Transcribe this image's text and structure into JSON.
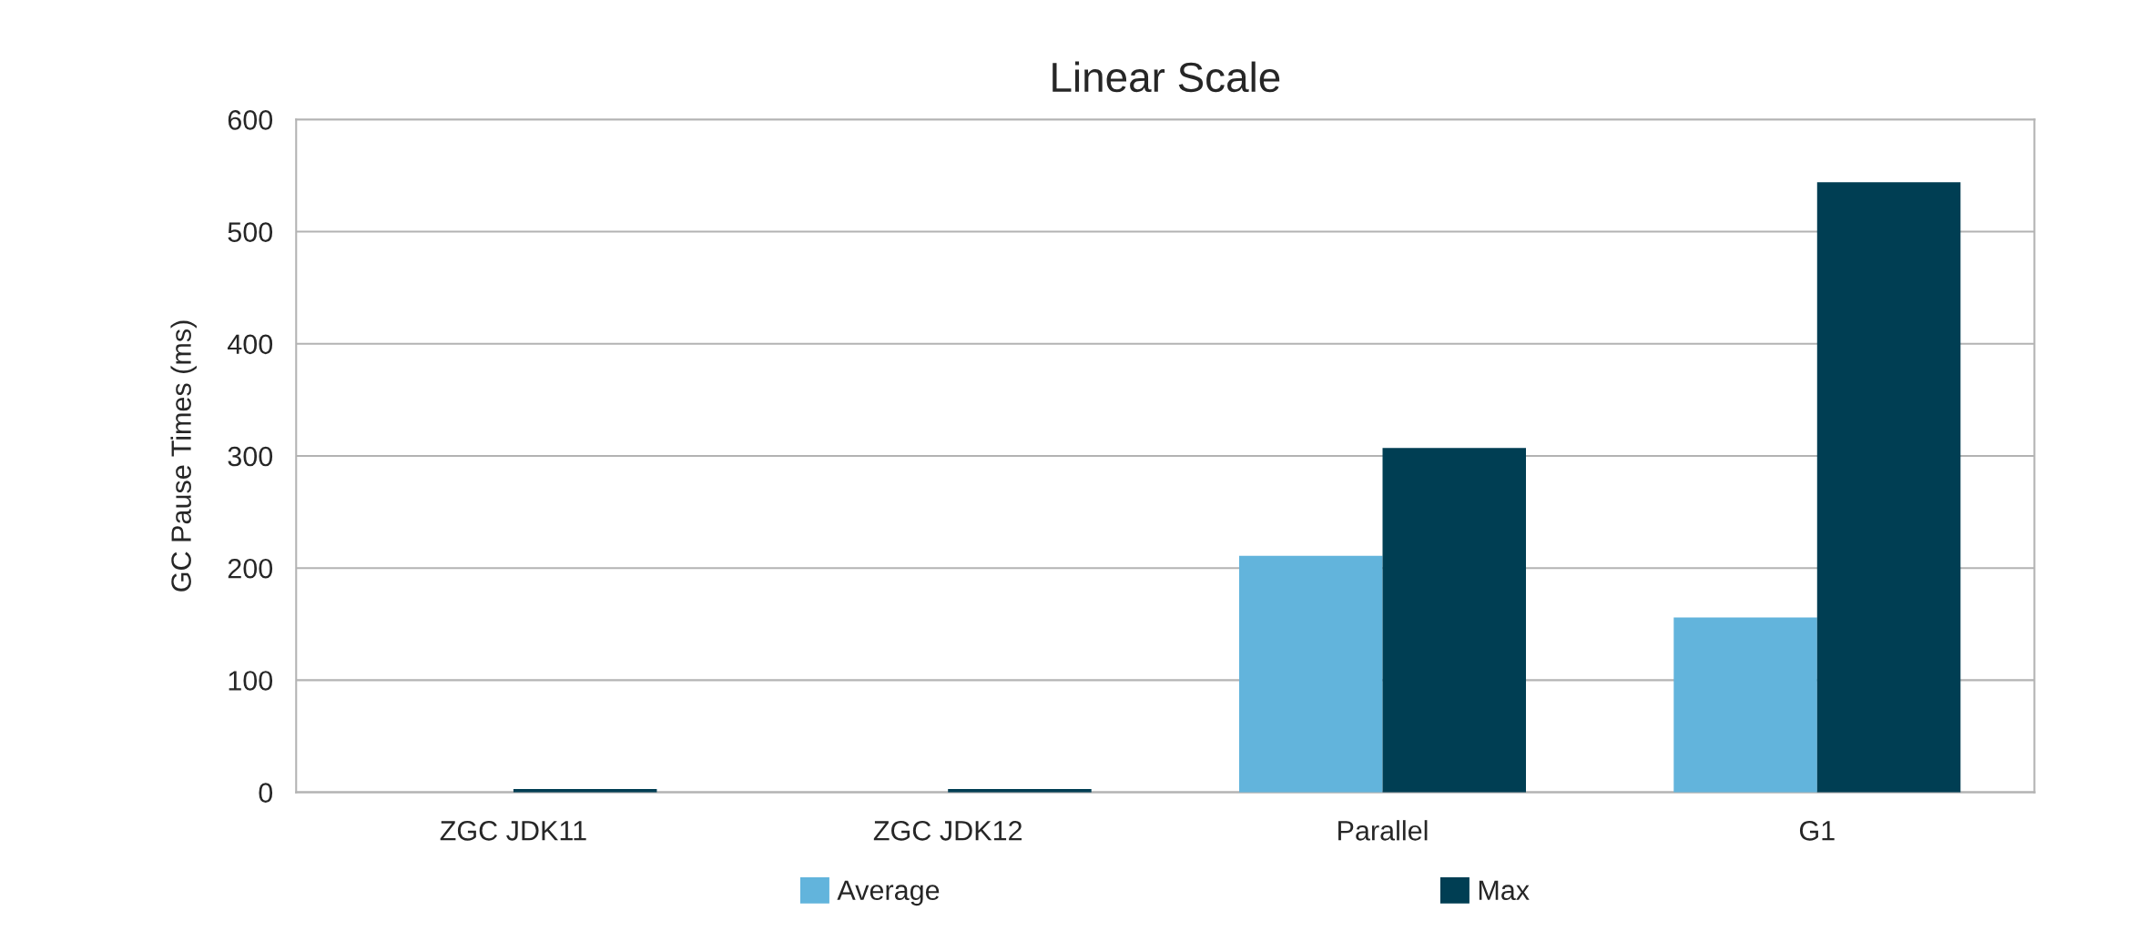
{
  "chart_data": {
    "type": "bar",
    "title": "Linear Scale",
    "ylabel": "GC Pause Times (ms)",
    "categories": [
      "ZGC JDK11",
      "ZGC JDK12",
      "Parallel",
      "G1"
    ],
    "series": [
      {
        "name": "Average",
        "color": "#62b4dc",
        "values": [
          null,
          null,
          211,
          156
        ]
      },
      {
        "name": "Max",
        "color": "#003e53",
        "values": [
          3,
          3,
          307,
          544
        ]
      }
    ],
    "ylim": [
      0,
      600
    ],
    "yticks": [
      0,
      100,
      200,
      300,
      400,
      500,
      600
    ],
    "grid": "y",
    "legend": "bottom"
  }
}
